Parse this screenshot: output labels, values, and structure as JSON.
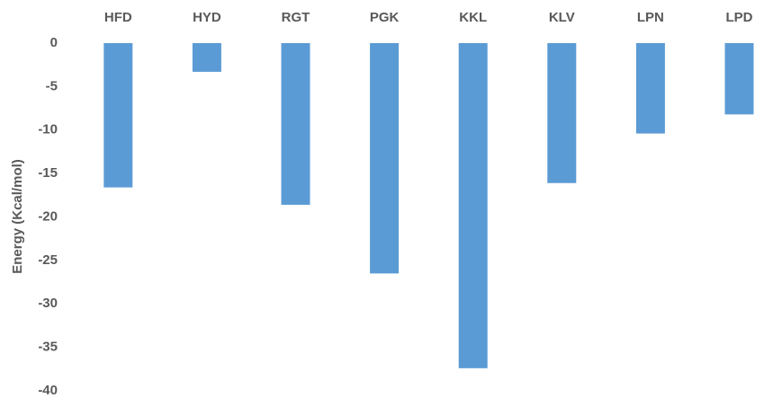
{
  "chart_data": {
    "type": "bar",
    "y_label": "Energy (Kcal/mol)",
    "categories": [
      "HFD",
      "HYD",
      "RGT",
      "PGK",
      "KKL",
      "KLV",
      "LPN",
      "LPD"
    ],
    "values": [
      -16.6,
      -3.3,
      -18.6,
      -26.5,
      -37.4,
      -16.1,
      -10.4,
      -8.2
    ],
    "color": "#5b9bd5",
    "ylim": [
      -40,
      0
    ],
    "yticks": [
      0,
      -5,
      -10,
      -15,
      -20,
      -25,
      -30,
      -35,
      -40
    ],
    "grid": false
  }
}
